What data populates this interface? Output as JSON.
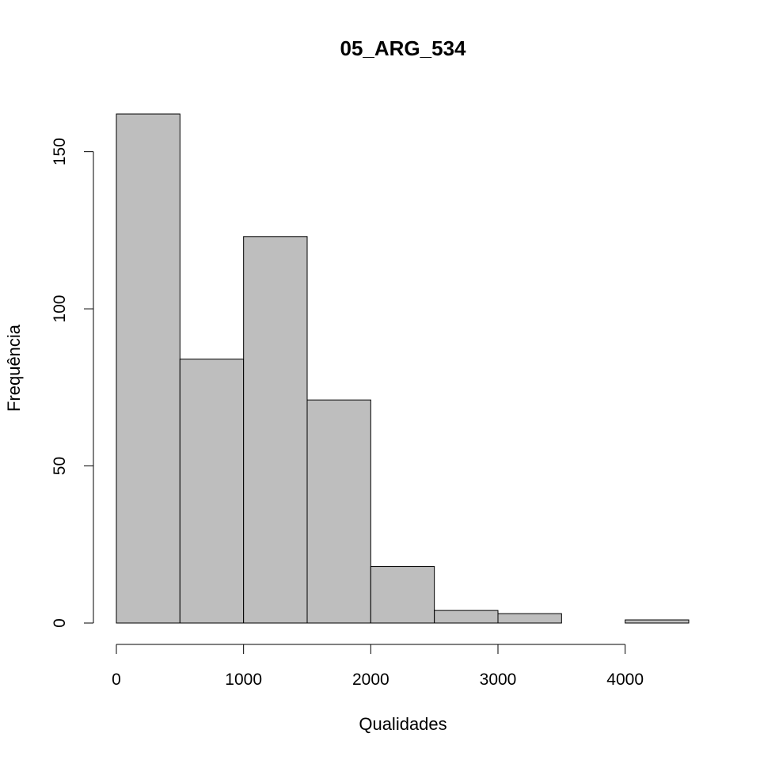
{
  "chart_data": {
    "type": "bar",
    "title": "05_ARG_534",
    "xlabel": "Qualidades",
    "ylabel": "Frequência",
    "bin_edges": [
      0,
      500,
      1000,
      1500,
      2000,
      2500,
      3000,
      3500,
      4000,
      4500
    ],
    "counts": [
      162,
      84,
      123,
      71,
      18,
      4,
      3,
      0,
      1
    ],
    "x_ticks": [
      0,
      1000,
      2000,
      3000,
      4000
    ],
    "y_ticks": [
      0,
      50,
      100,
      150
    ],
    "xlim": [
      0,
      4500
    ],
    "ylim": [
      0,
      162
    ],
    "grid": false,
    "bar_color": "#bebebe",
    "edge_color": "#000000"
  }
}
